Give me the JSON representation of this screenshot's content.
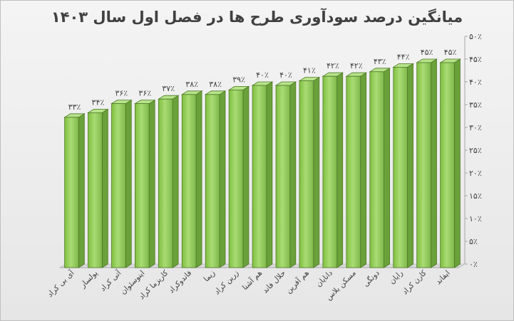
{
  "chart_data": {
    "type": "bar",
    "title": "میانگین درصد سودآوری طرح ها در فصل اول سال ۱۴۰۳",
    "xlabel": "",
    "ylabel": "",
    "categories": [
      "آی بی کراد",
      "پولسار",
      "آتی کراد",
      "اینوسئوان",
      "کاریزما کراد",
      "فاندوکراد",
      "زیما",
      "زرین کراد",
      "هم آشنا",
      "حلال فاند",
      "هم آفرین",
      "دانایان",
      "مسکن بلاس",
      "دونگی",
      "رایان",
      "کارن کراد",
      "ایفاند"
    ],
    "values": [
      33,
      34,
      36,
      36,
      37,
      38,
      38,
      39,
      40,
      40,
      41,
      42,
      42,
      43,
      44,
      45,
      45
    ],
    "data_labels": [
      "۳۳٪",
      "۳۴٪",
      "۳۶٪",
      "۳۶٪",
      "۳۷٪",
      "۳۸٪",
      "۳۸٪",
      "۳۹٪",
      "۴۰٪",
      "۴۰٪",
      "۴۱٪",
      "۴۲٪",
      "۴۲٪",
      "۴۳٪",
      "۴۴٪",
      "۴۵٪",
      "۴۵٪"
    ],
    "ylim": [
      0,
      50
    ],
    "y_ticks": [
      0,
      5,
      10,
      15,
      20,
      25,
      30,
      35,
      40,
      45,
      50
    ],
    "y_tick_labels": [
      "۰٪",
      "۵٪",
      "۱۰٪",
      "۱۵٪",
      "۲۰٪",
      "۲۵٪",
      "۳۰٪",
      "۳۵٪",
      "۴۰٪",
      "۴۵٪",
      "۵۰٪"
    ],
    "y_axis_side": "right",
    "grid": false,
    "legend": "none",
    "bar_color": "#92d050",
    "bar_edge_color": "#4f7a28"
  }
}
